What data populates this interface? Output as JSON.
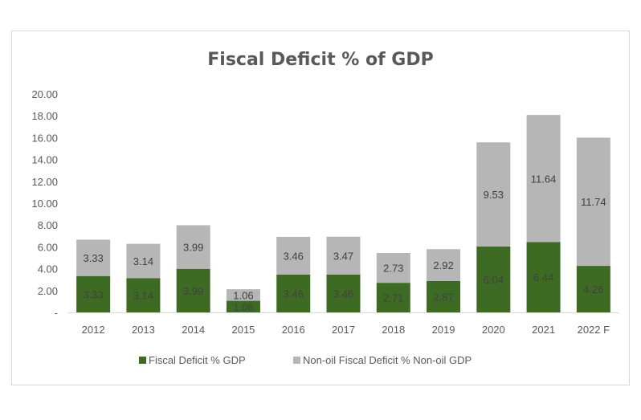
{
  "chart_data": {
    "type": "bar",
    "stacked": true,
    "title": "Fiscal Deficit % of GDP",
    "categories": [
      "2012",
      "2013",
      "2014",
      "2015",
      "2016",
      "2017",
      "2018",
      "2019",
      "2020",
      "2021",
      "2022 F"
    ],
    "series": [
      {
        "name": "Fiscal Deficit % GDP",
        "color": "#3e6b24",
        "values": [
          3.33,
          3.14,
          3.99,
          1.06,
          3.46,
          3.46,
          2.71,
          2.87,
          6.04,
          6.44,
          4.26
        ]
      },
      {
        "name": "Non-oil Fiscal Deficit % Non-oil GDP",
        "color": "#b6b6b6",
        "values": [
          3.33,
          3.14,
          3.99,
          1.06,
          3.46,
          3.47,
          2.73,
          2.92,
          9.53,
          11.64,
          11.74
        ]
      }
    ],
    "ylim": [
      0,
      20
    ],
    "yticks": [
      "-",
      "2.00",
      "4.00",
      "6.00",
      "8.00",
      "10.00",
      "12.00",
      "14.00",
      "16.00",
      "18.00",
      "20.00"
    ],
    "grid": false,
    "legend": "bottom"
  }
}
